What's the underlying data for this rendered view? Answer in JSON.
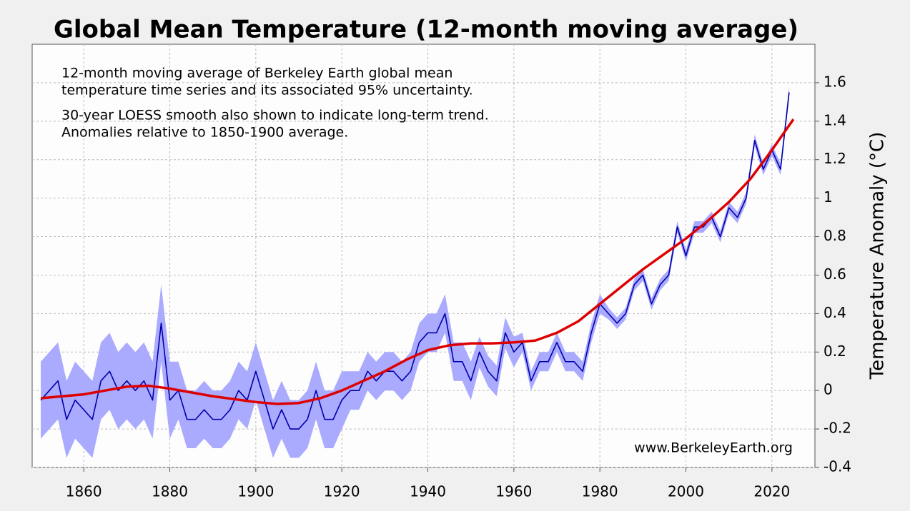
{
  "chart_data": {
    "type": "line",
    "title": "Global Mean Temperature (12-month moving average)",
    "annotations": [
      "12-month moving average of Berkeley Earth global mean",
      "temperature time series and its associated 95% uncertainty.",
      "30-year LOESS smooth also shown to indicate long-term trend.",
      "Anomalies relative to 1850-1900 average."
    ],
    "source": "www.BerkeleyEarth.org",
    "y_label": "Temperature Anomaly (°C)",
    "xlim": [
      1848,
      2030
    ],
    "ylim": [
      -0.4,
      1.8
    ],
    "xticks": [
      1860,
      1880,
      1900,
      1920,
      1940,
      1960,
      1980,
      2000,
      2020
    ],
    "yticks": [
      -0.4,
      -0.2,
      0,
      0.2,
      0.4,
      0.6,
      0.8,
      1,
      1.2,
      1.4,
      1.6
    ],
    "grid": true,
    "series": [
      {
        "color": "#0000aa",
        "band_color": "#aaaaff",
        "x": [
          1850,
          1852,
          1854,
          1856,
          1858,
          1860,
          1862,
          1864,
          1866,
          1868,
          1870,
          1872,
          1874,
          1876,
          1878,
          1880,
          1882,
          1884,
          1886,
          1888,
          1890,
          1892,
          1894,
          1896,
          1898,
          1900,
          1902,
          1904,
          1906,
          1908,
          1910,
          1912,
          1914,
          1916,
          1918,
          1920,
          1922,
          1924,
          1926,
          1928,
          1930,
          1932,
          1934,
          1936,
          1938,
          1940,
          1942,
          1944,
          1946,
          1948,
          1950,
          1952,
          1954,
          1956,
          1958,
          1960,
          1962,
          1964,
          1966,
          1968,
          1970,
          1972,
          1974,
          1976,
          1978,
          1980,
          1982,
          1984,
          1986,
          1988,
          1990,
          1992,
          1994,
          1996,
          1998,
          2000,
          2002,
          2004,
          2006,
          2008,
          2010,
          2012,
          2014,
          2016,
          2018,
          2020,
          2022,
          2024
        ],
        "values": [
          -0.05,
          0.0,
          0.05,
          -0.15,
          -0.05,
          -0.1,
          -0.15,
          0.05,
          0.1,
          0.0,
          0.05,
          0.0,
          0.05,
          -0.05,
          0.35,
          -0.05,
          0.0,
          -0.15,
          -0.15,
          -0.1,
          -0.15,
          -0.15,
          -0.1,
          0.0,
          -0.05,
          0.1,
          -0.05,
          -0.2,
          -0.1,
          -0.2,
          -0.2,
          -0.15,
          0.0,
          -0.15,
          -0.15,
          -0.05,
          0.0,
          0.0,
          0.1,
          0.05,
          0.1,
          0.1,
          0.05,
          0.1,
          0.25,
          0.3,
          0.3,
          0.4,
          0.15,
          0.15,
          0.05,
          0.2,
          0.1,
          0.05,
          0.3,
          0.2,
          0.25,
          0.05,
          0.15,
          0.15,
          0.25,
          0.15,
          0.15,
          0.1,
          0.3,
          0.45,
          0.4,
          0.35,
          0.4,
          0.55,
          0.6,
          0.45,
          0.55,
          0.6,
          0.85,
          0.7,
          0.85,
          0.85,
          0.9,
          0.8,
          0.95,
          0.9,
          1.0,
          1.3,
          1.15,
          1.25,
          1.15,
          1.55
        ],
        "uncertainty": [
          0.2,
          0.2,
          0.2,
          0.2,
          0.2,
          0.2,
          0.2,
          0.2,
          0.2,
          0.2,
          0.2,
          0.2,
          0.2,
          0.2,
          0.2,
          0.2,
          0.15,
          0.15,
          0.15,
          0.15,
          0.15,
          0.15,
          0.15,
          0.15,
          0.15,
          0.15,
          0.15,
          0.15,
          0.15,
          0.15,
          0.15,
          0.15,
          0.15,
          0.15,
          0.15,
          0.15,
          0.1,
          0.1,
          0.1,
          0.1,
          0.1,
          0.1,
          0.1,
          0.1,
          0.1,
          0.1,
          0.1,
          0.1,
          0.1,
          0.1,
          0.1,
          0.08,
          0.08,
          0.08,
          0.08,
          0.08,
          0.05,
          0.05,
          0.05,
          0.05,
          0.05,
          0.05,
          0.05,
          0.05,
          0.05,
          0.05,
          0.03,
          0.03,
          0.03,
          0.03,
          0.03,
          0.03,
          0.03,
          0.03,
          0.03,
          0.03,
          0.03,
          0.03,
          0.03,
          0.03,
          0.03,
          0.03,
          0.03,
          0.03,
          0.03,
          0.03,
          0.03,
          0.03
        ]
      },
      {
        "color": "#dd0000",
        "x": [
          1850,
          1855,
          1860,
          1865,
          1870,
          1875,
          1880,
          1885,
          1890,
          1895,
          1900,
          1905,
          1910,
          1915,
          1920,
          1925,
          1930,
          1935,
          1940,
          1945,
          1950,
          1955,
          1960,
          1965,
          1970,
          1975,
          1980,
          1985,
          1990,
          1995,
          2000,
          2005,
          2010,
          2015,
          2020,
          2025
        ],
        "values": [
          -0.04,
          -0.03,
          -0.02,
          0.0,
          0.02,
          0.025,
          0.01,
          -0.01,
          -0.03,
          -0.045,
          -0.06,
          -0.07,
          -0.065,
          -0.04,
          0.0,
          0.05,
          0.1,
          0.16,
          0.21,
          0.235,
          0.245,
          0.245,
          0.25,
          0.26,
          0.3,
          0.36,
          0.45,
          0.54,
          0.63,
          0.71,
          0.79,
          0.88,
          0.98,
          1.1,
          1.25,
          1.41
        ]
      }
    ]
  }
}
